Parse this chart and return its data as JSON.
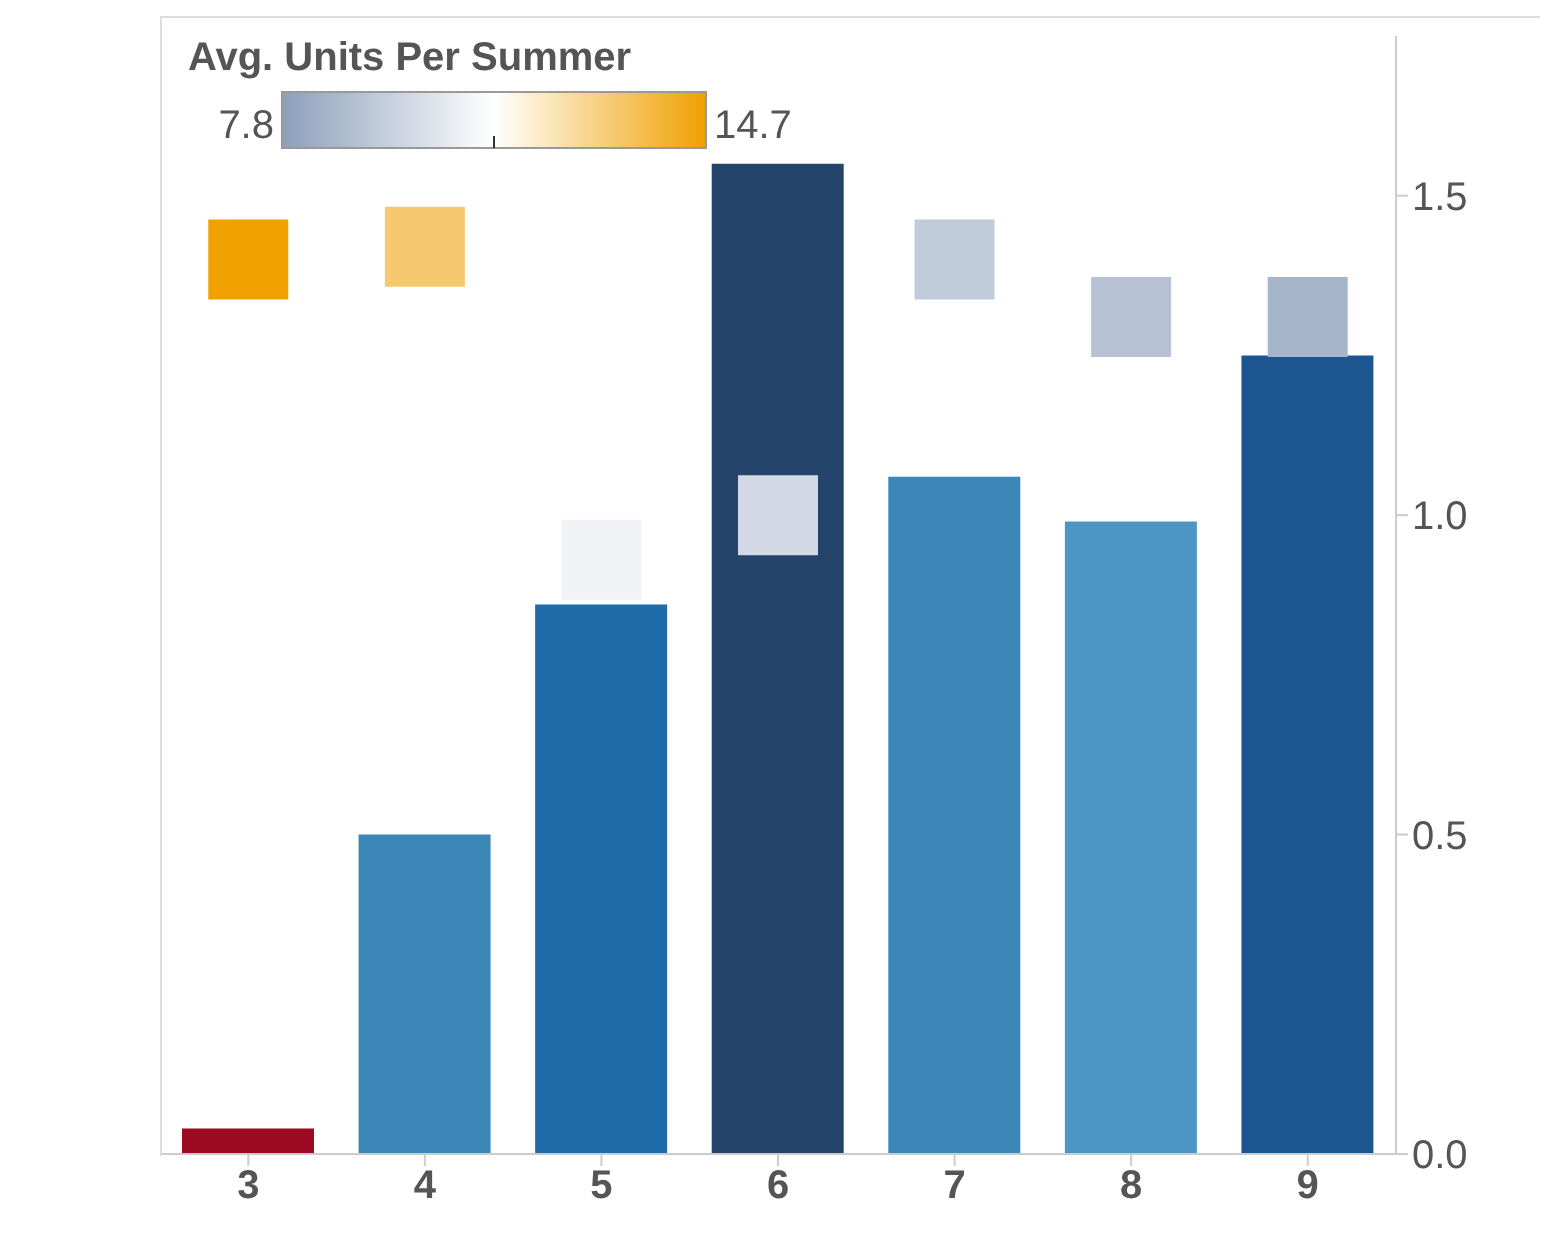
{
  "chart_data": {
    "type": "bar",
    "legend_title": "Avg. Units Per Summer",
    "categories": [
      "3",
      "4",
      "5",
      "6",
      "7",
      "8",
      "9"
    ],
    "series": [
      {
        "type": "bar",
        "axis": "y2",
        "colors": [
          "#9b0a20",
          "#3a87b8",
          "#1f6ba8",
          "#24446b",
          "#3a87b8",
          "#4b96c4",
          "#1d5591"
        ],
        "values": [
          0.04,
          0.5,
          0.86,
          1.55,
          1.06,
          0.99,
          1.25
        ]
      },
      {
        "type": "scatter",
        "axis": "y2",
        "marker": "square",
        "x": [
          "3",
          "4",
          "5",
          "6",
          "7",
          "8",
          "9"
        ],
        "values": [
          1.4,
          1.42,
          0.93,
          1.0,
          1.4,
          1.31,
          1.31
        ],
        "colors": [
          "#f0a000",
          "#f7c96f",
          "#f0f2f6",
          "#d2d9e4",
          "#c1ccdb",
          "#b7c3d5",
          "#a7b5cb"
        ]
      }
    ],
    "y2lim": [
      0,
      1.75
    ],
    "y2ticks": [
      {
        "value": 0,
        "label": "0.0"
      },
      0.5,
      {
        "value": 1,
        "label": "1.0"
      },
      1.5
    ],
    "annotations": [
      "7.8",
      "14.7"
    ],
    "grid": false
  }
}
